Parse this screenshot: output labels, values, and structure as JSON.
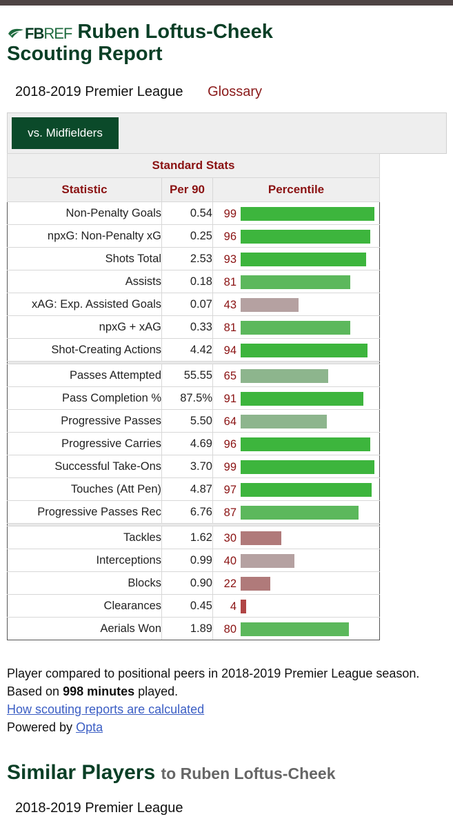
{
  "logo": {
    "bold": "FB",
    "light": "REF",
    "name": "fbref-logo"
  },
  "header": {
    "player": "Ruben Loftus-Cheek",
    "report": "Scouting Report"
  },
  "season": "2018-2019 Premier League",
  "glossary": "Glossary",
  "filter": {
    "label": "vs. Midfielders"
  },
  "table": {
    "caption": "Standard Stats",
    "columns": [
      "Statistic",
      "Per 90",
      "Percentile"
    ],
    "colors": {
      "high": "#3db53d",
      "mid_high": "#5cb85c",
      "mid": "#8db58d",
      "neutral": "#b5a1a1",
      "low": "#b07a7a",
      "very_low": "#b04545"
    },
    "groups": [
      [
        {
          "stat": "Non-Penalty Goals",
          "per90": "0.54",
          "pct": 99
        },
        {
          "stat": "npxG: Non-Penalty xG",
          "per90": "0.25",
          "pct": 96
        },
        {
          "stat": "Shots Total",
          "per90": "2.53",
          "pct": 93
        },
        {
          "stat": "Assists",
          "per90": "0.18",
          "pct": 81
        },
        {
          "stat": "xAG: Exp. Assisted Goals",
          "per90": "0.07",
          "pct": 43
        },
        {
          "stat": "npxG + xAG",
          "per90": "0.33",
          "pct": 81
        },
        {
          "stat": "Shot-Creating Actions",
          "per90": "4.42",
          "pct": 94
        }
      ],
      [
        {
          "stat": "Passes Attempted",
          "per90": "55.55",
          "pct": 65
        },
        {
          "stat": "Pass Completion %",
          "per90": "87.5%",
          "pct": 91
        },
        {
          "stat": "Progressive Passes",
          "per90": "5.50",
          "pct": 64
        },
        {
          "stat": "Progressive Carries",
          "per90": "4.69",
          "pct": 96
        },
        {
          "stat": "Successful Take-Ons",
          "per90": "3.70",
          "pct": 99
        },
        {
          "stat": "Touches (Att Pen)",
          "per90": "4.87",
          "pct": 97
        },
        {
          "stat": "Progressive Passes Rec",
          "per90": "6.76",
          "pct": 87
        }
      ],
      [
        {
          "stat": "Tackles",
          "per90": "1.62",
          "pct": 30
        },
        {
          "stat": "Interceptions",
          "per90": "0.99",
          "pct": 40
        },
        {
          "stat": "Blocks",
          "per90": "0.90",
          "pct": 22
        },
        {
          "stat": "Clearances",
          "per90": "0.45",
          "pct": 4
        },
        {
          "stat": "Aerials Won",
          "per90": "1.89",
          "pct": 80
        }
      ]
    ]
  },
  "note": {
    "line1_prefix": "Player compared to positional peers in 2018-2019 Premier League season. Based on ",
    "minutes": "998 minutes",
    "line1_suffix": " played.",
    "link": "How scouting reports are calculated",
    "powered_prefix": "Powered by ",
    "powered_link": "Opta"
  },
  "similar": {
    "title": "Similar Players",
    "sub": "to Ruben Loftus-Cheek",
    "season": "2018-2019 Premier League"
  }
}
